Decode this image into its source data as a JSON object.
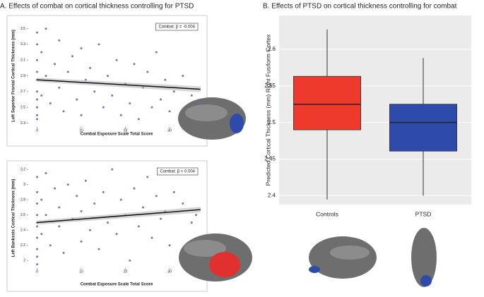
{
  "chart_data": [
    {
      "type": "scatter",
      "title": "A. Effects of combat on cortical thickness controlling for PTSD",
      "xlabel": "Combat Exposure Scale Total Score",
      "ylabel": "Left Superior Frontal Cortical Thickness (mm)",
      "annotation": "Combat: β = -0.004",
      "color": "#5a5fb0",
      "xlim": [
        -2,
        38
      ],
      "ylim": [
        2.25,
        3.55
      ],
      "xticks": [
        0,
        10,
        20,
        30
      ],
      "yticks": [
        2.3,
        2.5,
        2.7,
        2.9,
        3.1,
        3.3,
        3.5
      ],
      "x": [
        0,
        0,
        0,
        0,
        0,
        0,
        0,
        0,
        0,
        0,
        1,
        1,
        2,
        2,
        3,
        4,
        5,
        5,
        6,
        7,
        8,
        9,
        10,
        10,
        11,
        12,
        13,
        14,
        15,
        16,
        17,
        18,
        19,
        20,
        21,
        22,
        23,
        24,
        25,
        26,
        27,
        28,
        29,
        30,
        31,
        33,
        35,
        36
      ],
      "y": [
        3.45,
        3.3,
        3.1,
        2.95,
        2.85,
        2.7,
        2.6,
        2.5,
        2.4,
        2.35,
        3.2,
        2.65,
        3.5,
        2.9,
        2.55,
        3.05,
        2.75,
        3.35,
        2.45,
        2.95,
        3.15,
        2.6,
        3.25,
        2.4,
        2.85,
        3.0,
        2.7,
        3.3,
        2.5,
        2.9,
        2.65,
        3.1,
        2.4,
        2.8,
        2.55,
        3.05,
        2.35,
        2.75,
        2.95,
        2.5,
        3.2,
        2.6,
        2.85,
        2.45,
        2.7,
        2.9,
        2.65,
        2.55
      ],
      "fit": {
        "x": [
          0,
          37
        ],
        "y": [
          2.85,
          2.73
        ]
      }
    },
    {
      "type": "scatter",
      "xlabel": "Combat Exposure Scale Total Score",
      "ylabel": "Left Bankssts Cortical Thickness (mm)",
      "annotation": "Combat: β = 0.004",
      "color": "#5a5fb0",
      "xlim": [
        -2,
        38
      ],
      "ylim": [
        1.9,
        3.22
      ],
      "xticks": [
        0,
        10,
        20,
        30
      ],
      "yticks": [
        2.0,
        2.2,
        2.4,
        2.6,
        2.8,
        3.0,
        3.2
      ],
      "x": [
        0,
        0,
        0,
        0,
        0,
        0,
        0,
        0,
        0,
        0,
        1,
        1,
        2,
        2,
        3,
        4,
        5,
        5,
        6,
        7,
        8,
        9,
        10,
        10,
        11,
        12,
        13,
        14,
        15,
        16,
        17,
        18,
        19,
        20,
        21,
        22,
        23,
        24,
        25,
        26,
        27,
        28,
        29,
        30,
        31,
        33,
        35,
        36
      ],
      "y": [
        3.1,
        2.9,
        2.75,
        2.6,
        2.45,
        2.3,
        2.15,
        2.05,
        1.95,
        2.5,
        2.8,
        2.35,
        3.15,
        2.6,
        2.2,
        2.95,
        2.45,
        2.7,
        2.1,
        3.0,
        2.55,
        2.85,
        2.25,
        2.65,
        3.05,
        2.4,
        2.75,
        2.15,
        2.9,
        2.5,
        3.2,
        2.35,
        2.8,
        2.6,
        2.0,
        2.95,
        2.45,
        2.7,
        3.1,
        2.3,
        2.85,
        2.55,
        2.65,
        2.2,
        2.9,
        2.75,
        2.5,
        2.6
      ],
      "fit": {
        "x": [
          0,
          37
        ],
        "y": [
          2.5,
          2.67
        ]
      }
    },
    {
      "type": "box",
      "title": "B. Effects of PTSD on cortical thickness controlling for combat",
      "ylabel": "Predicted Cortical Thickness (mm) Right Fusiform Cortex",
      "categories": [
        "Controls",
        "PTSD"
      ],
      "colors": [
        "#ee3a2c",
        "#2e4bab"
      ],
      "min": [
        2.395,
        2.4
      ],
      "q1": [
        2.49,
        2.461
      ],
      "median": [
        2.525,
        2.5
      ],
      "q3": [
        2.563,
        2.525
      ],
      "max": [
        2.627,
        2.588
      ],
      "ylim": [
        2.388,
        2.646
      ],
      "yticks": [
        2.4,
        2.45,
        2.5,
        2.55,
        2.6
      ],
      "grid": true
    }
  ]
}
